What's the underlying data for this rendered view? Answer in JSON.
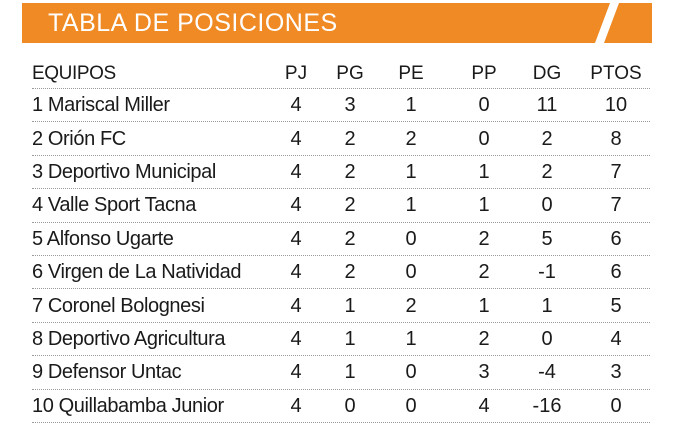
{
  "title": "TABLA DE POSICIONES",
  "colors": {
    "banner": "#F08A24",
    "text": "#1a1a1a"
  },
  "columns": [
    "EQUIPOS",
    "PJ",
    "PG",
    "PE",
    "PP",
    "DG",
    "PTOS"
  ],
  "rows": [
    {
      "team": "1 Mariscal Miller",
      "pj": "4",
      "pg": "3",
      "pe": "1",
      "pp": "0",
      "dg": "11",
      "ptos": "10"
    },
    {
      "team": "2 Orión FC",
      "pj": "4",
      "pg": "2",
      "pe": "2",
      "pp": "0",
      "dg": "2",
      "ptos": "8"
    },
    {
      "team": "3 Deportivo Municipal",
      "pj": "4",
      "pg": "2",
      "pe": "1",
      "pp": "1",
      "dg": "2",
      "ptos": "7"
    },
    {
      "team": "4 Valle Sport Tacna",
      "pj": "4",
      "pg": "2",
      "pe": "1",
      "pp": "1",
      "dg": "0",
      "ptos": "7"
    },
    {
      "team": "5 Alfonso Ugarte",
      "pj": "4",
      "pg": "2",
      "pe": "0",
      "pp": "2",
      "dg": "5",
      "ptos": "6"
    },
    {
      "team": "6 Virgen de La Natividad",
      "pj": "4",
      "pg": "2",
      "pe": "0",
      "pp": "2",
      "dg": "-1",
      "ptos": "6"
    },
    {
      "team": "7 Coronel Bolognesi",
      "pj": "4",
      "pg": "1",
      "pe": "2",
      "pp": "1",
      "dg": "1",
      "ptos": "5"
    },
    {
      "team": "8 Deportivo Agricultura",
      "pj": "4",
      "pg": "1",
      "pe": "1",
      "pp": "2",
      "dg": "0",
      "ptos": "4"
    },
    {
      "team": "9 Defensor Untac",
      "pj": "4",
      "pg": "1",
      "pe": "0",
      "pp": "3",
      "dg": "-4",
      "ptos": "3"
    },
    {
      "team": "10 Quillabamba Junior",
      "pj": "4",
      "pg": "0",
      "pe": "0",
      "pp": "4",
      "dg": "-16",
      "ptos": "0"
    }
  ]
}
